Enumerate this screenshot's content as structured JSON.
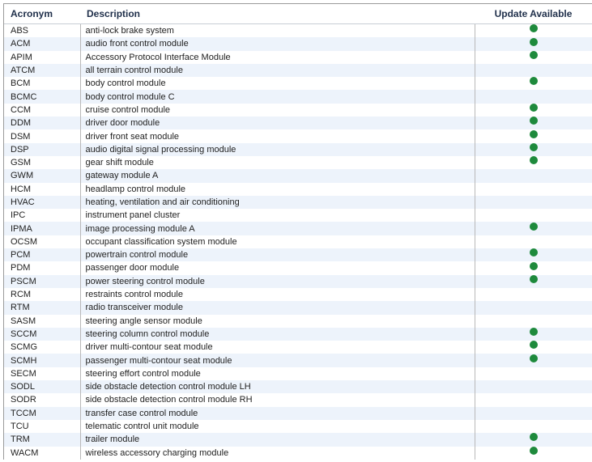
{
  "headers": {
    "acronym": "Acronym",
    "description": "Description",
    "update": "Update Available"
  },
  "colors": {
    "update_dot": "#1e8a3c",
    "stripe": "#edf3fb"
  },
  "icons": {
    "update": "green-dot-icon"
  },
  "rows": [
    {
      "acronym": "ABS",
      "description": "anti-lock brake system",
      "update": true
    },
    {
      "acronym": "ACM",
      "description": "audio front control module",
      "update": true
    },
    {
      "acronym": "APIM",
      "description": "Accessory Protocol Interface Module",
      "update": true
    },
    {
      "acronym": "ATCM",
      "description": "all terrain control module",
      "update": false
    },
    {
      "acronym": "BCM",
      "description": "body control module",
      "update": true
    },
    {
      "acronym": "BCMC",
      "description": "body control module C",
      "update": false
    },
    {
      "acronym": "CCM",
      "description": "cruise control module",
      "update": true
    },
    {
      "acronym": "DDM",
      "description": "driver door module",
      "update": true
    },
    {
      "acronym": "DSM",
      "description": "driver front seat module",
      "update": true
    },
    {
      "acronym": "DSP",
      "description": "audio digital signal processing module",
      "update": true
    },
    {
      "acronym": "GSM",
      "description": "gear shift module",
      "update": true
    },
    {
      "acronym": "GWM",
      "description": "gateway module A",
      "update": false
    },
    {
      "acronym": "HCM",
      "description": "headlamp control module",
      "update": false
    },
    {
      "acronym": "HVAC",
      "description": "heating, ventilation and air conditioning",
      "update": false
    },
    {
      "acronym": "IPC",
      "description": "instrument panel cluster",
      "update": false
    },
    {
      "acronym": "IPMA",
      "description": "image processing module A",
      "update": true
    },
    {
      "acronym": "OCSM",
      "description": "occupant classification system module",
      "update": false
    },
    {
      "acronym": "PCM",
      "description": "powertrain control module",
      "update": true
    },
    {
      "acronym": "PDM",
      "description": "passenger door module",
      "update": true
    },
    {
      "acronym": "PSCM",
      "description": "power steering control module",
      "update": true
    },
    {
      "acronym": "RCM",
      "description": "restraints control module",
      "update": false
    },
    {
      "acronym": "RTM",
      "description": "radio transceiver module",
      "update": false
    },
    {
      "acronym": "SASM",
      "description": "steering angle sensor module",
      "update": false
    },
    {
      "acronym": "SCCM",
      "description": "steering column control module",
      "update": true
    },
    {
      "acronym": "SCMG",
      "description": "driver multi-contour seat module",
      "update": true
    },
    {
      "acronym": "SCMH",
      "description": "passenger multi-contour seat module",
      "update": true
    },
    {
      "acronym": "SECM",
      "description": "steering effort control module",
      "update": false
    },
    {
      "acronym": "SODL",
      "description": "side obstacle detection control module LH",
      "update": false
    },
    {
      "acronym": "SODR",
      "description": "side obstacle detection control module RH",
      "update": false
    },
    {
      "acronym": "TCCM",
      "description": "transfer case control module",
      "update": false
    },
    {
      "acronym": "TCU",
      "description": "telematic control unit module",
      "update": false
    },
    {
      "acronym": "TRM",
      "description": "trailer module",
      "update": true
    },
    {
      "acronym": "WACM",
      "description": "wireless accessory charging module",
      "update": true
    }
  ]
}
